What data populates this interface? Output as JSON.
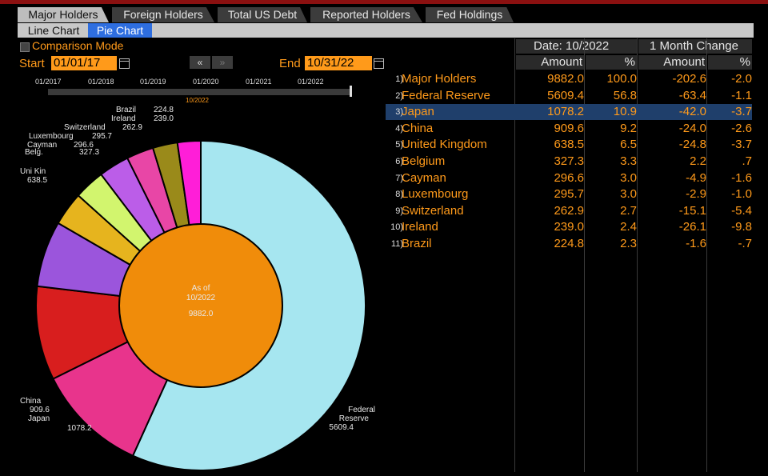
{
  "tabs": [
    "Major Holders",
    "Foreign Holders",
    "Total US Debt",
    "Reported Holders",
    "Fed Holdings"
  ],
  "subtabs": [
    "Line Chart",
    "Pie Chart"
  ],
  "controls": {
    "comparison_mode": "Comparison Mode",
    "start_label": "Start",
    "start_date": "01/01/17",
    "end_label": "End",
    "end_date": "10/31/22",
    "nav_back": "«",
    "nav_forward": "»"
  },
  "timeline": {
    "labels": [
      "01/2017",
      "01/2018",
      "01/2019",
      "01/2020",
      "01/2021",
      "01/2022"
    ],
    "selected": "10/2022"
  },
  "table": {
    "header_date": "Date: 10/2022",
    "header_change": "1 Month Change",
    "col_amount": "Amount",
    "col_pct": "%",
    "col_change_amount": "Amount",
    "col_change_pct": "%",
    "rows": [
      {
        "idx": "1)",
        "name": "Major Holders",
        "amount": "9882.0",
        "pct": "100.0",
        "chg": "-202.6",
        "chgpct": "-2.0"
      },
      {
        "idx": "2)",
        "name": "Federal Reserve",
        "amount": "5609.4",
        "pct": "56.8",
        "chg": "-63.4",
        "chgpct": "-1.1"
      },
      {
        "idx": "3)",
        "name": "Japan",
        "amount": "1078.2",
        "pct": "10.9",
        "chg": "-42.0",
        "chgpct": "-3.7"
      },
      {
        "idx": "4)",
        "name": "China",
        "amount": "909.6",
        "pct": "9.2",
        "chg": "-24.0",
        "chgpct": "-2.6"
      },
      {
        "idx": "5)",
        "name": "United Kingdom",
        "amount": "638.5",
        "pct": "6.5",
        "chg": "-24.8",
        "chgpct": "-3.7"
      },
      {
        "idx": "6)",
        "name": "Belgium",
        "amount": "327.3",
        "pct": "3.3",
        "chg": "2.2",
        "chgpct": ".7"
      },
      {
        "idx": "7)",
        "name": "Cayman",
        "amount": "296.6",
        "pct": "3.0",
        "chg": "-4.9",
        "chgpct": "-1.6"
      },
      {
        "idx": "8)",
        "name": "Luxembourg",
        "amount": "295.7",
        "pct": "3.0",
        "chg": "-2.9",
        "chgpct": "-1.0"
      },
      {
        "idx": "9)",
        "name": "Switzerland",
        "amount": "262.9",
        "pct": "2.7",
        "chg": "-15.1",
        "chgpct": "-5.4"
      },
      {
        "idx": "10)",
        "name": "Ireland",
        "amount": "239.0",
        "pct": "2.4",
        "chg": "-26.1",
        "chgpct": "-9.8"
      },
      {
        "idx": "11)",
        "name": "Brazil",
        "amount": "224.8",
        "pct": "2.3",
        "chg": "-1.6",
        "chgpct": "-.7"
      }
    ]
  },
  "chart_data": {
    "type": "pie",
    "center_label": "As of",
    "center_date": "10/2022",
    "center_value": "9882.0",
    "slices": [
      {
        "name": "Federal",
        "name2": "Reserve",
        "value": 5609.4,
        "label": "5609.4",
        "color": "#a6e6f0"
      },
      {
        "name": "Japan",
        "value": 1078.2,
        "label": "1078.2",
        "color": "#e8348c"
      },
      {
        "name": "China",
        "value": 909.6,
        "label": "909.6",
        "color": "#d81e1e"
      },
      {
        "name": "Uni Kin",
        "value": 638.5,
        "label": "638.5",
        "color": "#9b55dc"
      },
      {
        "name": "Belg.",
        "value": 327.3,
        "label": "327.3",
        "color": "#e6b41e"
      },
      {
        "name": "Cayman",
        "value": 296.6,
        "label": "296.6",
        "color": "#d2f56e"
      },
      {
        "name": "Luxembourg",
        "value": 295.7,
        "label": "295.7",
        "color": "#bb5de8"
      },
      {
        "name": "Switzerland",
        "value": 262.9,
        "label": "262.9",
        "color": "#e846a6"
      },
      {
        "name": "Ireland",
        "value": 239.0,
        "label": "239.0",
        "color": "#9a8a1a"
      },
      {
        "name": "Brazil",
        "value": 224.8,
        "label": "224.8",
        "color": "#ff1ed8"
      }
    ],
    "center_color": "#f08c0a"
  }
}
